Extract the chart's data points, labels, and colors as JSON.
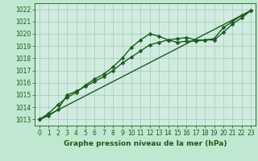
{
  "title": "Graphe pression niveau de la mer (hPa)",
  "background_color": "#c0e8d0",
  "plot_bg_color": "#d0ece0",
  "grid_color": "#a8c8b8",
  "line_color": "#1a5c1a",
  "text_color": "#1a5c1a",
  "xlim": [
    -0.5,
    23.5
  ],
  "ylim": [
    1012.5,
    1022.5
  ],
  "yticks": [
    1013,
    1014,
    1015,
    1016,
    1017,
    1018,
    1019,
    1020,
    1021,
    1022
  ],
  "xticks": [
    0,
    1,
    2,
    3,
    4,
    5,
    6,
    7,
    8,
    9,
    10,
    11,
    12,
    13,
    14,
    15,
    16,
    17,
    18,
    19,
    20,
    21,
    22,
    23
  ],
  "series1_x": [
    0,
    1,
    2,
    3,
    4,
    5,
    6,
    7,
    8,
    9,
    10,
    11,
    12,
    13,
    14,
    15,
    16,
    17,
    18,
    19,
    20,
    21,
    22,
    23
  ],
  "series1_y": [
    1013.0,
    1013.5,
    1014.2,
    1014.8,
    1015.2,
    1015.8,
    1016.3,
    1016.7,
    1017.3,
    1018.0,
    1018.9,
    1019.5,
    1020.0,
    1019.8,
    1019.5,
    1019.3,
    1019.4,
    1019.4,
    1019.5,
    1019.5,
    1020.1,
    1020.8,
    1021.3,
    1021.9
  ],
  "series2_x": [
    0,
    1,
    2,
    3,
    4,
    5,
    6,
    7,
    8,
    9,
    10,
    11,
    12,
    13,
    14,
    15,
    16,
    17,
    18,
    19,
    20,
    21,
    22,
    23
  ],
  "series2_y": [
    1013.0,
    1013.3,
    1013.8,
    1015.0,
    1015.3,
    1015.7,
    1016.1,
    1016.5,
    1017.0,
    1017.6,
    1018.1,
    1018.6,
    1019.1,
    1019.3,
    1019.5,
    1019.6,
    1019.7,
    1019.5,
    1019.5,
    1019.6,
    1020.5,
    1021.0,
    1021.5,
    1021.9
  ],
  "series3_x": [
    0,
    23
  ],
  "series3_y": [
    1013.0,
    1021.9
  ],
  "markersize": 2.5,
  "linewidth": 1.0,
  "title_fontsize": 6.5,
  "tick_fontsize": 5.5
}
